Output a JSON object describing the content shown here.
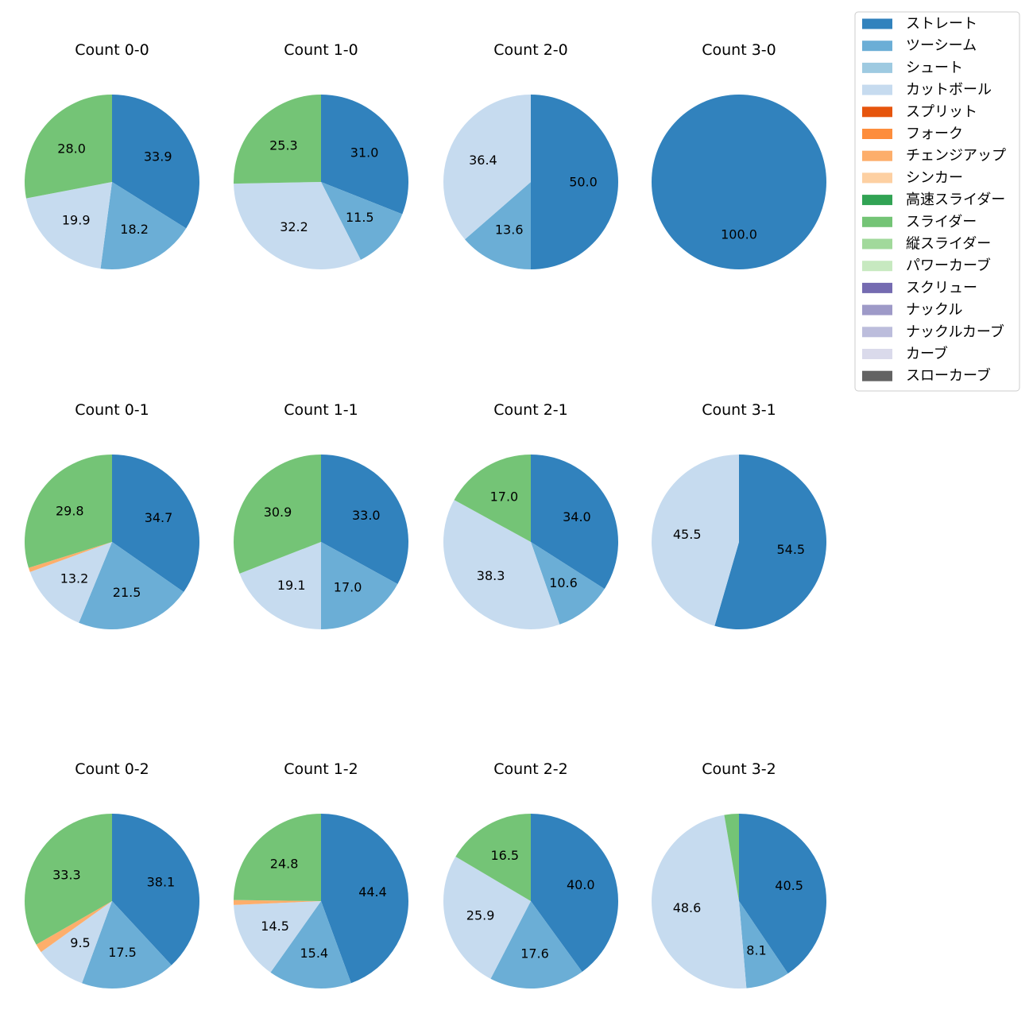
{
  "chart_data": {
    "type": "pie",
    "legend": {
      "placement": "top-right",
      "entries": [
        {
          "name": "ストレート",
          "color": "#3182bd"
        },
        {
          "name": "ツーシーム",
          "color": "#6baed6"
        },
        {
          "name": "シュート",
          "color": "#9ecae1"
        },
        {
          "name": "カットボール",
          "color": "#c6dbef"
        },
        {
          "name": "スプリット",
          "color": "#e6550d"
        },
        {
          "name": "フォーク",
          "color": "#fd8d3c"
        },
        {
          "name": "チェンジアップ",
          "color": "#fdae6b"
        },
        {
          "name": "シンカー",
          "color": "#fdd0a2"
        },
        {
          "name": "高速スライダー",
          "color": "#31a354"
        },
        {
          "name": "スライダー",
          "color": "#74c476"
        },
        {
          "name": "縦スライダー",
          "color": "#a1d99b"
        },
        {
          "name": "パワーカーブ",
          "color": "#c7e9c0"
        },
        {
          "name": "スクリュー",
          "color": "#756bb1"
        },
        {
          "name": "ナックル",
          "color": "#9e9ac8"
        },
        {
          "name": "ナックルカーブ",
          "color": "#bcbddc"
        },
        {
          "name": "カーブ",
          "color": "#dadaeb"
        },
        {
          "name": "スローカーブ",
          "color": "#636363"
        }
      ]
    },
    "pies": [
      {
        "title": "Count 0-0",
        "slices": [
          {
            "pitch": "ストレート",
            "value": 33.9,
            "label": "33.9"
          },
          {
            "pitch": "ツーシーム",
            "value": 18.2,
            "label": "18.2"
          },
          {
            "pitch": "カットボール",
            "value": 19.9,
            "label": "19.9"
          },
          {
            "pitch": "スライダー",
            "value": 28.0,
            "label": "28.0"
          }
        ]
      },
      {
        "title": "Count 1-0",
        "slices": [
          {
            "pitch": "ストレート",
            "value": 31.0,
            "label": "31.0"
          },
          {
            "pitch": "ツーシーム",
            "value": 11.5,
            "label": "11.5"
          },
          {
            "pitch": "カットボール",
            "value": 32.2,
            "label": "32.2"
          },
          {
            "pitch": "スライダー",
            "value": 25.3,
            "label": "25.3"
          }
        ]
      },
      {
        "title": "Count 2-0",
        "slices": [
          {
            "pitch": "ストレート",
            "value": 50.0,
            "label": "50.0"
          },
          {
            "pitch": "ツーシーム",
            "value": 13.6,
            "label": "13.6"
          },
          {
            "pitch": "カットボール",
            "value": 36.4,
            "label": "36.4"
          }
        ]
      },
      {
        "title": "Count 3-0",
        "slices": [
          {
            "pitch": "ストレート",
            "value": 100.0,
            "label": "100.0"
          }
        ]
      },
      {
        "title": "Count 0-1",
        "slices": [
          {
            "pitch": "ストレート",
            "value": 34.7,
            "label": "34.7"
          },
          {
            "pitch": "ツーシーム",
            "value": 21.5,
            "label": "21.5"
          },
          {
            "pitch": "カットボール",
            "value": 13.2,
            "label": "13.2"
          },
          {
            "pitch": "チェンジアップ",
            "value": 0.8,
            "label": ""
          },
          {
            "pitch": "スライダー",
            "value": 29.8,
            "label": "29.8"
          }
        ]
      },
      {
        "title": "Count 1-1",
        "slices": [
          {
            "pitch": "ストレート",
            "value": 33.0,
            "label": "33.0"
          },
          {
            "pitch": "ツーシーム",
            "value": 17.0,
            "label": "17.0"
          },
          {
            "pitch": "カットボール",
            "value": 19.1,
            "label": "19.1"
          },
          {
            "pitch": "スライダー",
            "value": 30.9,
            "label": "30.9"
          }
        ]
      },
      {
        "title": "Count 2-1",
        "slices": [
          {
            "pitch": "ストレート",
            "value": 34.0,
            "label": "34.0"
          },
          {
            "pitch": "ツーシーム",
            "value": 10.6,
            "label": "10.6"
          },
          {
            "pitch": "カットボール",
            "value": 38.3,
            "label": "38.3"
          },
          {
            "pitch": "スライダー",
            "value": 17.0,
            "label": "17.0"
          }
        ]
      },
      {
        "title": "Count 3-1",
        "slices": [
          {
            "pitch": "ストレート",
            "value": 54.5,
            "label": "54.5"
          },
          {
            "pitch": "カットボール",
            "value": 45.5,
            "label": "45.5"
          }
        ]
      },
      {
        "title": "Count 0-2",
        "slices": [
          {
            "pitch": "ストレート",
            "value": 38.1,
            "label": "38.1"
          },
          {
            "pitch": "ツーシーム",
            "value": 17.5,
            "label": "17.5"
          },
          {
            "pitch": "カットボール",
            "value": 9.5,
            "label": "9.5"
          },
          {
            "pitch": "チェンジアップ",
            "value": 1.6,
            "label": ""
          },
          {
            "pitch": "スライダー",
            "value": 33.3,
            "label": "33.3"
          }
        ]
      },
      {
        "title": "Count 1-2",
        "slices": [
          {
            "pitch": "ストレート",
            "value": 44.4,
            "label": "44.4"
          },
          {
            "pitch": "ツーシーム",
            "value": 15.4,
            "label": "15.4"
          },
          {
            "pitch": "カットボール",
            "value": 14.5,
            "label": "14.5"
          },
          {
            "pitch": "チェンジアップ",
            "value": 0.9,
            "label": ""
          },
          {
            "pitch": "スライダー",
            "value": 24.8,
            "label": "24.8"
          }
        ]
      },
      {
        "title": "Count 2-2",
        "slices": [
          {
            "pitch": "ストレート",
            "value": 40.0,
            "label": "40.0"
          },
          {
            "pitch": "ツーシーム",
            "value": 17.6,
            "label": "17.6"
          },
          {
            "pitch": "カットボール",
            "value": 25.9,
            "label": "25.9"
          },
          {
            "pitch": "スライダー",
            "value": 16.5,
            "label": "16.5"
          }
        ]
      },
      {
        "title": "Count 3-2",
        "slices": [
          {
            "pitch": "ストレート",
            "value": 40.5,
            "label": "40.5"
          },
          {
            "pitch": "ツーシーム",
            "value": 8.1,
            "label": "8.1"
          },
          {
            "pitch": "カットボール",
            "value": 48.6,
            "label": "48.6"
          },
          {
            "pitch": "スライダー",
            "value": 2.7,
            "label": ""
          }
        ]
      }
    ]
  }
}
